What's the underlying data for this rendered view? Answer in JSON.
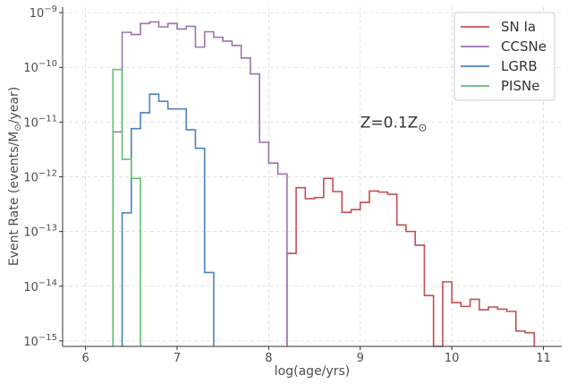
{
  "chart_data": {
    "type": "line",
    "style": "step-histogram",
    "xlabel": "log(age/yrs)",
    "ylabel": "Event Rate (events/M⊙/year)",
    "ylabel_parts": {
      "pre": "Event Rate (events/M",
      "sub": "⊙",
      "post": "/year)"
    },
    "xlim": [
      5.75,
      11.2
    ],
    "ylim_exponent": [
      -15.1,
      -8.9
    ],
    "yscale": "log",
    "grid": true,
    "legend_position": "top-right",
    "annotation": {
      "pre": "Z=0.1Z",
      "sub": "⊙",
      "x": 9.0,
      "y_exponent": -11.0
    },
    "x_ticks": [
      {
        "value": 6,
        "label": "6"
      },
      {
        "value": 7,
        "label": "7"
      },
      {
        "value": 8,
        "label": "8"
      },
      {
        "value": 9,
        "label": "9"
      },
      {
        "value": 10,
        "label": "10"
      },
      {
        "value": 11,
        "label": "11"
      }
    ],
    "y_ticks": [
      {
        "value": -9,
        "base": "10",
        "exp": "−9"
      },
      {
        "value": -10,
        "base": "10",
        "exp": "−10"
      },
      {
        "value": -11,
        "base": "10",
        "exp": "−11"
      },
      {
        "value": -12,
        "base": "10",
        "exp": "−12"
      },
      {
        "value": -13,
        "base": "10",
        "exp": "−13"
      },
      {
        "value": -14,
        "base": "10",
        "exp": "−14"
      },
      {
        "value": -15,
        "base": "10",
        "exp": "−15"
      }
    ],
    "series": [
      {
        "name": "SN Ia",
        "color": "#c44e52",
        "bin_width": 0.1,
        "bins_start": [
          8.2,
          8.3,
          8.4,
          8.5,
          8.6,
          8.7,
          8.8,
          8.9,
          9.0,
          9.1,
          9.2,
          9.3,
          9.4,
          9.5,
          9.6,
          9.7,
          9.8,
          9.9,
          10.0,
          10.1,
          10.2,
          10.3,
          10.4,
          10.5,
          10.6,
          10.7,
          10.8
        ],
        "log_rate": [
          -13.4,
          -12.2,
          -12.4,
          -12.38,
          -12.03,
          -12.27,
          -12.65,
          -12.6,
          -12.47,
          -12.26,
          -12.28,
          -12.32,
          -12.88,
          -13.0,
          -13.25,
          -14.17,
          -15.1,
          -13.92,
          -14.3,
          -14.37,
          -14.24,
          -14.43,
          -14.38,
          -14.42,
          -14.46,
          -14.82,
          -14.85
        ]
      },
      {
        "name": "CCSNe",
        "color": "#9b72b0",
        "bin_width": 0.1,
        "bins_start": [
          6.3,
          6.4,
          6.5,
          6.6,
          6.7,
          6.8,
          6.9,
          7.0,
          7.1,
          7.2,
          7.3,
          7.4,
          7.5,
          7.6,
          7.7,
          7.8,
          7.9,
          8.0,
          8.1
        ],
        "log_rate": [
          -11.18,
          -9.36,
          -9.4,
          -9.2,
          -9.17,
          -9.26,
          -9.2,
          -9.3,
          -9.25,
          -9.63,
          -9.35,
          -9.45,
          -9.52,
          -9.6,
          -9.83,
          -10.12,
          -11.37,
          -11.75,
          -11.95
        ]
      },
      {
        "name": "LGRB",
        "color": "#4c82c0",
        "bin_width": 0.1,
        "bins_start": [
          6.4,
          6.5,
          6.6,
          6.7,
          6.8,
          6.9,
          7.0,
          7.1,
          7.2,
          7.3
        ],
        "log_rate": [
          -12.66,
          -11.12,
          -10.83,
          -10.49,
          -10.62,
          -10.76,
          -10.76,
          -11.14,
          -11.48,
          -13.75
        ]
      },
      {
        "name": "PISNe",
        "color": "#5ec16f",
        "bin_width": 0.1,
        "bins_start": [
          6.3,
          6.4,
          6.5
        ],
        "log_rate": [
          -10.04,
          -11.68,
          -12.03
        ]
      }
    ]
  }
}
